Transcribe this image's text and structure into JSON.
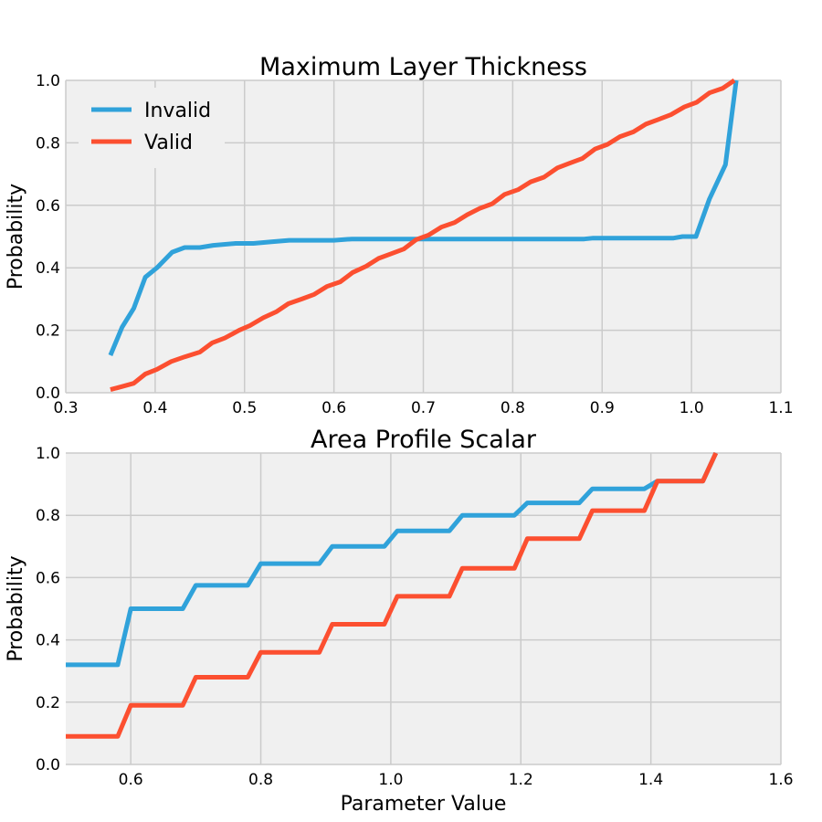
{
  "chart_data": [
    {
      "type": "line",
      "title": "Maximum Layer Thickness",
      "xlabel": "",
      "ylabel": "Probability",
      "xlim": [
        0.3,
        1.1
      ],
      "ylim": [
        0.0,
        1.0
      ],
      "xticks": [
        "0.3",
        "0.4",
        "0.5",
        "0.6",
        "0.7",
        "0.8",
        "0.9",
        "1.0",
        "1.1"
      ],
      "yticks": [
        "0.0",
        "0.2",
        "0.4",
        "0.6",
        "0.8",
        "1.0"
      ],
      "grid": true,
      "legend": {
        "placement": "top-left",
        "entries": [
          "Invalid",
          "Valid"
        ]
      },
      "series": [
        {
          "name": "Invalid",
          "color": "#30a2da",
          "x": [
            0.35,
            0.363,
            0.376,
            0.389,
            0.402,
            0.419,
            0.433,
            0.45,
            0.465,
            0.49,
            0.51,
            0.53,
            0.55,
            0.6,
            0.62,
            0.7,
            0.88,
            0.89,
            0.98,
            0.99,
            1.005,
            1.02,
            1.038,
            1.05
          ],
          "y": [
            0.12,
            0.21,
            0.27,
            0.37,
            0.4,
            0.45,
            0.465,
            0.465,
            0.472,
            0.478,
            0.478,
            0.483,
            0.488,
            0.488,
            0.492,
            0.492,
            0.492,
            0.495,
            0.495,
            0.5,
            0.5,
            0.62,
            0.73,
            1.0
          ]
        },
        {
          "name": "Valid",
          "color": "#fc4f30",
          "x": [
            0.35,
            0.363,
            0.376,
            0.389,
            0.402,
            0.418,
            0.433,
            0.45,
            0.464,
            0.478,
            0.494,
            0.506,
            0.521,
            0.536,
            0.549,
            0.564,
            0.578,
            0.592,
            0.607,
            0.621,
            0.636,
            0.65,
            0.664,
            0.678,
            0.692,
            0.706,
            0.72,
            0.735,
            0.749,
            0.763,
            0.777,
            0.791,
            0.806,
            0.82,
            0.835,
            0.85,
            0.864,
            0.878,
            0.892,
            0.906,
            0.92,
            0.935,
            0.949,
            0.963,
            0.977,
            0.992,
            1.006,
            1.02,
            1.035,
            1.048
          ],
          "y": [
            0.01,
            0.02,
            0.03,
            0.06,
            0.075,
            0.1,
            0.115,
            0.13,
            0.16,
            0.175,
            0.2,
            0.215,
            0.24,
            0.26,
            0.285,
            0.3,
            0.315,
            0.34,
            0.355,
            0.385,
            0.405,
            0.43,
            0.445,
            0.46,
            0.49,
            0.505,
            0.53,
            0.545,
            0.57,
            0.59,
            0.605,
            0.635,
            0.65,
            0.675,
            0.69,
            0.72,
            0.735,
            0.75,
            0.78,
            0.795,
            0.82,
            0.835,
            0.86,
            0.875,
            0.89,
            0.915,
            0.93,
            0.96,
            0.975,
            1.0
          ]
        }
      ]
    },
    {
      "type": "line",
      "title": "Area Profile Scalar",
      "xlabel": "Parameter Value",
      "ylabel": "Probability",
      "xlim": [
        0.5,
        1.6
      ],
      "ylim": [
        0.0,
        1.0
      ],
      "xticks": [
        "0.6",
        "0.8",
        "1.0",
        "1.2",
        "1.4",
        "1.6"
      ],
      "yticks": [
        "0.0",
        "0.2",
        "0.4",
        "0.6",
        "0.8",
        "1.0"
      ],
      "grid": true,
      "series": [
        {
          "name": "Invalid",
          "color": "#30a2da",
          "x": [
            0.5,
            0.58,
            0.6,
            0.68,
            0.7,
            0.78,
            0.8,
            0.89,
            0.91,
            0.99,
            1.01,
            1.09,
            1.11,
            1.19,
            1.21,
            1.29,
            1.31,
            1.39,
            1.41,
            1.48,
            1.5
          ],
          "y": [
            0.32,
            0.32,
            0.5,
            0.5,
            0.575,
            0.575,
            0.645,
            0.645,
            0.7,
            0.7,
            0.75,
            0.75,
            0.8,
            0.8,
            0.84,
            0.84,
            0.885,
            0.885,
            0.91,
            0.91,
            1.0
          ]
        },
        {
          "name": "Valid",
          "color": "#fc4f30",
          "x": [
            0.5,
            0.58,
            0.6,
            0.68,
            0.7,
            0.78,
            0.8,
            0.89,
            0.91,
            0.99,
            1.01,
            1.09,
            1.11,
            1.19,
            1.21,
            1.29,
            1.31,
            1.39,
            1.41,
            1.48,
            1.5
          ],
          "y": [
            0.09,
            0.09,
            0.19,
            0.19,
            0.28,
            0.28,
            0.36,
            0.36,
            0.45,
            0.45,
            0.54,
            0.54,
            0.63,
            0.63,
            0.725,
            0.725,
            0.815,
            0.815,
            0.91,
            0.91,
            1.0
          ]
        }
      ]
    }
  ]
}
